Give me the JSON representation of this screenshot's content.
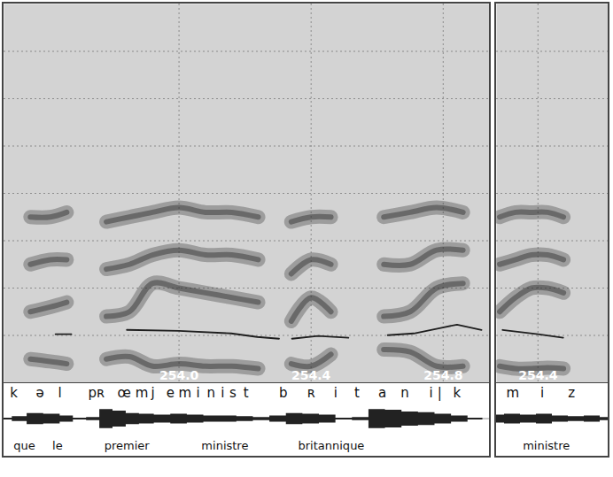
{
  "chart_data": [
    {
      "type": "spectrogram",
      "xlim": [
        253.47,
        254.94
      ],
      "xticks": [
        {
          "value": 254,
          "label": "254.0"
        },
        254.4,
        254.8
      ],
      "ylim": [
        0,
        8000
      ],
      "yticks": [
        1000,
        2000,
        3000,
        4000,
        5000,
        6000,
        7000
      ],
      "y2lim": [
        50,
        500
      ],
      "grid": true,
      "tick_labels": "x",
      "formants": {
        "x": [
          253.55,
          253.61,
          253.66,
          253.7,
          253.78,
          253.85,
          253.92,
          254.0,
          254.08,
          254.16,
          254.24,
          254.3,
          254.34,
          254.4,
          254.46,
          254.52,
          254.56,
          254.62,
          254.7,
          254.78,
          254.86,
          254.92
        ],
        "tracks": [
          [
            500,
            450,
            400,
            null,
            500,
            550,
            350,
            400,
            350,
            350,
            300,
            null,
            400,
            350,
            600,
            null,
            null,
            700,
            650,
            350,
            350,
            null
          ],
          [
            1500,
            1600,
            1700,
            null,
            1400,
            1500,
            2100,
            2000,
            1900,
            1800,
            1700,
            null,
            1300,
            1800,
            1500,
            null,
            null,
            1400,
            1500,
            2000,
            2100,
            null
          ],
          [
            2500,
            2600,
            2600,
            null,
            2400,
            2500,
            2700,
            2800,
            2700,
            2700,
            2600,
            null,
            2300,
            2600,
            2500,
            null,
            null,
            2500,
            2500,
            2800,
            2800,
            null
          ],
          [
            3500,
            3500,
            3600,
            null,
            3400,
            3500,
            3600,
            3700,
            3600,
            3600,
            3500,
            null,
            3400,
            3500,
            3500,
            null,
            null,
            3500,
            3600,
            3700,
            3600,
            null
          ]
        ]
      },
      "pitch": {
        "axis": "y2",
        "x": [
          253.626,
          253.674,
          253.7,
          253.842,
          254.0,
          254.158,
          254.237,
          254.303,
          254.32,
          254.342,
          254.421,
          254.513,
          254.56,
          254.632,
          254.711,
          254.789,
          254.842,
          254.916
        ],
        "values": [
          107.6,
          107.6,
          null,
          112.8,
          111.7,
          108.6,
          104.4,
          102.3,
          null,
          102.3,
          105.5,
          103.4,
          null,
          106.5,
          108.6,
          114.9,
          119.1,
          112.8
        ]
      },
      "segments": {
        "labels": [
          "k",
          "ə",
          "l",
          "pʀ",
          "œ",
          "m",
          "j",
          "e",
          "m",
          "i",
          "n",
          "i",
          "s",
          "t",
          "b",
          "ʀ",
          "i",
          "t",
          "a",
          "n",
          "i",
          "|",
          "k"
        ],
        "x": [
          253.5,
          253.579,
          253.639,
          253.75,
          253.834,
          253.887,
          253.921,
          253.974,
          254.018,
          254.058,
          254.097,
          254.132,
          254.163,
          254.203,
          254.316,
          254.4,
          254.474,
          254.539,
          254.616,
          254.684,
          254.763,
          254.789,
          254.842
        ]
      },
      "waveform": {
        "ylim": [
          -1,
          1
        ],
        "x": [
          253.47,
          253.52,
          253.56,
          253.62,
          253.66,
          253.7,
          253.74,
          253.78,
          253.82,
          253.86,
          253.9,
          253.95,
          254.0,
          254.05,
          254.1,
          254.15,
          254.2,
          254.25,
          254.3,
          254.35,
          254.4,
          254.45,
          254.5,
          254.55,
          254.6,
          254.65,
          254.7,
          254.75,
          254.8,
          254.85,
          254.9,
          254.94
        ],
        "values": [
          0.05,
          0.15,
          0.35,
          0.3,
          0.2,
          0.05,
          0.1,
          0.6,
          0.5,
          0.35,
          0.3,
          0.25,
          0.3,
          0.25,
          0.2,
          0.2,
          0.15,
          0.1,
          0.2,
          0.35,
          0.3,
          0.25,
          0.05,
          0.1,
          0.6,
          0.55,
          0.45,
          0.4,
          0.3,
          0.2,
          0.05,
          0.02
        ]
      },
      "words": {
        "labels": [
          "que",
          "le",
          "premier",
          "ministre",
          "britannique"
        ],
        "x": [
          253.532,
          253.632,
          253.842,
          254.139,
          254.461
        ]
      }
    },
    {
      "type": "spectrogram",
      "xlim": [
        254.27,
        254.62
      ],
      "xticks": [
        254.4
      ],
      "ylim": [
        0,
        8000
      ],
      "yticks": [
        1000,
        2000,
        3000,
        4000,
        5000,
        6000,
        7000
      ],
      "y2lim": [
        50,
        500
      ],
      "grid": true,
      "tick_labels": "x",
      "formants": {
        "x": [
          254.28,
          254.33,
          254.38,
          254.43,
          254.48
        ],
        "tracks": [
          [
            350,
            300,
            300,
            320,
            300
          ],
          [
            1500,
            1800,
            2000,
            2000,
            1900
          ],
          [
            2500,
            2600,
            2700,
            2700,
            2600
          ],
          [
            3500,
            3600,
            3600,
            3600,
            3500
          ]
        ]
      },
      "pitch": {
        "axis": "y2",
        "x": [
          254.289,
          254.4,
          254.479
        ],
        "values": [
          112.8,
          107.6,
          103.4
        ]
      },
      "segments": {
        "labels": [
          "m",
          "i",
          "z"
        ],
        "x": [
          254.321,
          254.413,
          254.505
        ]
      },
      "waveform": {
        "ylim": [
          -1,
          1
        ],
        "x": [
          254.27,
          254.32,
          254.37,
          254.42,
          254.47,
          254.52,
          254.57,
          254.62
        ],
        "values": [
          0.25,
          0.3,
          0.25,
          0.3,
          0.2,
          0.15,
          0.2,
          0.1
        ]
      },
      "words": {
        "labels": [
          "ministre"
        ],
        "x": [
          254.426
        ]
      }
    }
  ]
}
